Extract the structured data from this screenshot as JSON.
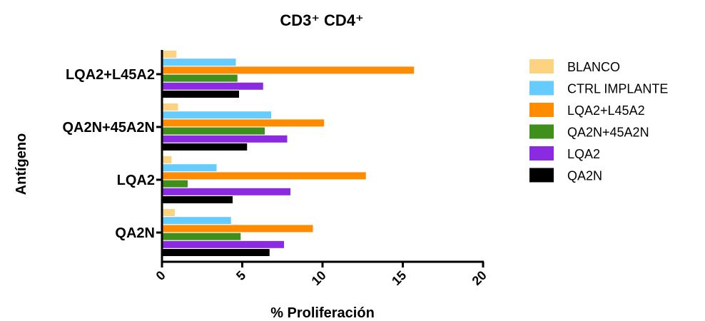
{
  "chart_data": {
    "type": "bar",
    "orientation": "horizontal",
    "title": "CD3⁺ CD4⁺",
    "xlabel": "% Proliferación",
    "ylabel": "Antígeno",
    "xlim": [
      0,
      20
    ],
    "xticks": [
      0,
      5,
      10,
      15,
      20
    ],
    "categories": [
      "LQA2+L45A2",
      "QA2N+45A2N",
      "LQA2",
      "QA2N"
    ],
    "legend_position": "right",
    "grid": false,
    "series": [
      {
        "name": "BLANCO",
        "color": "#fdd382",
        "values": [
          0.9,
          1.0,
          0.6,
          0.8
        ]
      },
      {
        "name": "CTRL IMPLANTE",
        "color": "#66ccff",
        "values": [
          4.6,
          6.8,
          3.4,
          4.3
        ]
      },
      {
        "name": "LQA2+L45A2",
        "color": "#ff8c00",
        "values": [
          15.7,
          10.1,
          12.7,
          9.4
        ]
      },
      {
        "name": "QA2N+45A2N",
        "color": "#3f8f1c",
        "values": [
          4.7,
          6.4,
          1.6,
          4.9
        ]
      },
      {
        "name": "LQA2",
        "color": "#8a2be2",
        "values": [
          6.3,
          7.8,
          8.0,
          7.6
        ]
      },
      {
        "name": "QA2N",
        "color": "#000000",
        "values": [
          4.8,
          5.3,
          4.4,
          6.7
        ]
      }
    ]
  }
}
